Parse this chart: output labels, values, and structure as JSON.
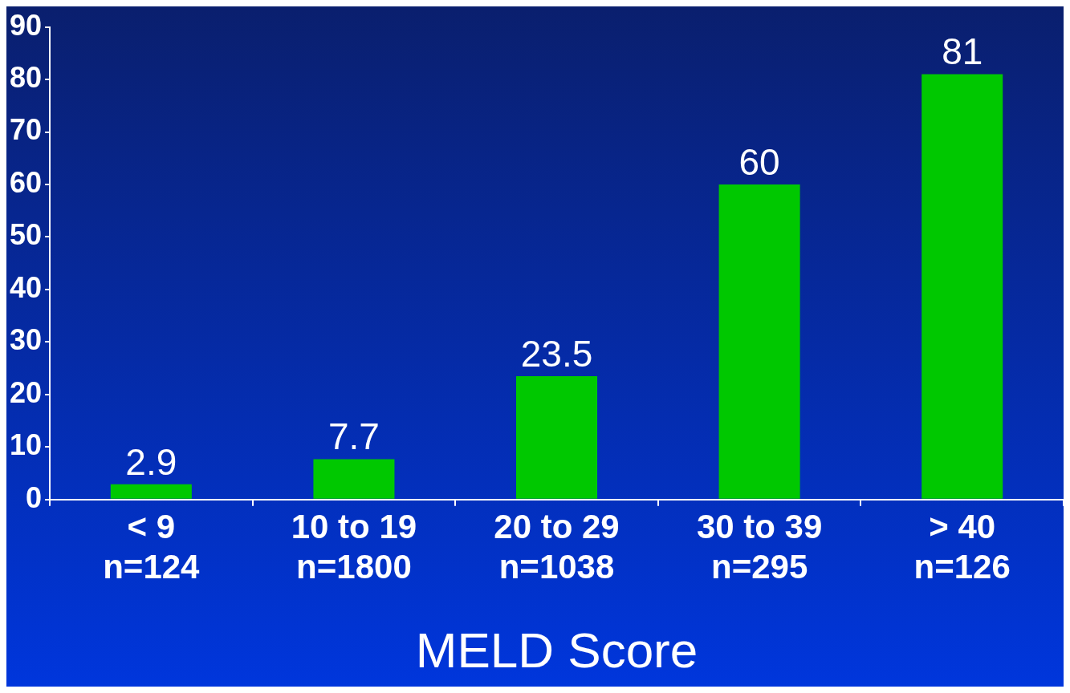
{
  "chart_data": {
    "type": "bar",
    "xlabel": "MELD Score",
    "categories": [
      "< 9\nn=124",
      "10 to 19\nn=1800",
      "20 to 29\nn=1038",
      "30 to 39\nn=295",
      "> 40\nn=126"
    ],
    "values": [
      2.9,
      7.7,
      23.5,
      60,
      81
    ],
    "color": "#00c800",
    "ylim": [
      0,
      90
    ],
    "yticks": [
      0,
      10,
      20,
      30,
      40,
      50,
      60,
      70,
      80,
      90
    ],
    "grid": false,
    "legend": false,
    "data_labels": true
  }
}
